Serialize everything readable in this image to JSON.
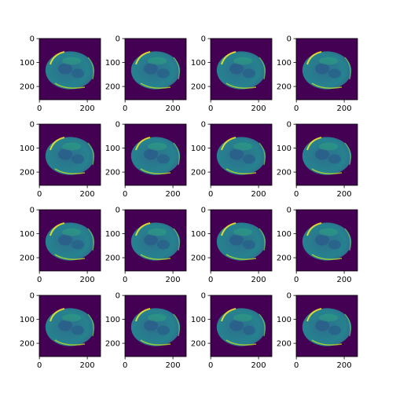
{
  "figure": {
    "layout": {
      "rows": 4,
      "cols": 4
    },
    "colormap": "viridis",
    "colors": {
      "background": "#440154",
      "tissue": "#2d6e8e",
      "tissue_bright": "#35b779",
      "highlight": "#fde725",
      "axes_frame": "#000000"
    },
    "panel_axes": {
      "x_ticks": [
        "0",
        "200"
      ],
      "y_ticks": [
        "0",
        "100",
        "200"
      ]
    },
    "panels": [
      {
        "row": 1,
        "col": 1
      },
      {
        "row": 1,
        "col": 2
      },
      {
        "row": 1,
        "col": 3
      },
      {
        "row": 1,
        "col": 4
      },
      {
        "row": 2,
        "col": 1
      },
      {
        "row": 2,
        "col": 2
      },
      {
        "row": 2,
        "col": 3
      },
      {
        "row": 2,
        "col": 4
      },
      {
        "row": 3,
        "col": 1
      },
      {
        "row": 3,
        "col": 2
      },
      {
        "row": 3,
        "col": 3
      },
      {
        "row": 3,
        "col": 4
      },
      {
        "row": 4,
        "col": 1
      },
      {
        "row": 4,
        "col": 2
      },
      {
        "row": 4,
        "col": 3
      },
      {
        "row": 4,
        "col": 4
      }
    ]
  }
}
